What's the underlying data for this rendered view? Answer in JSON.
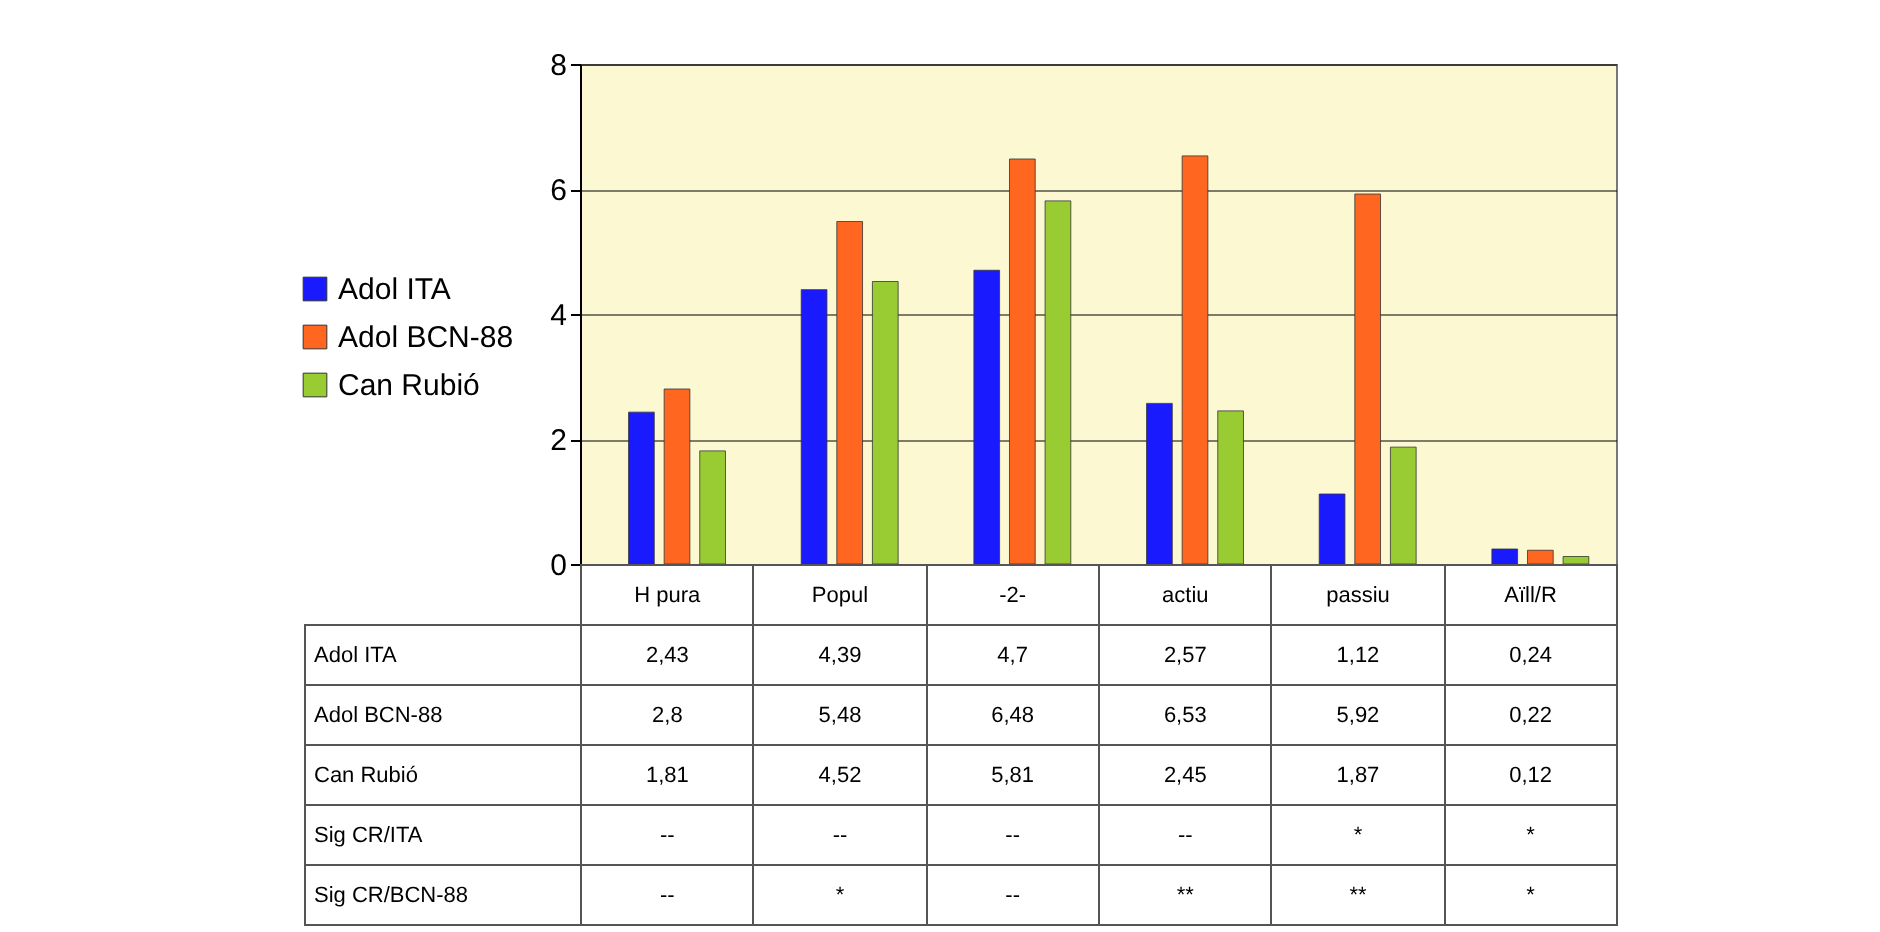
{
  "chart_data": {
    "type": "bar",
    "categories": [
      "H pura",
      "Popul",
      "-2-",
      "actiu",
      "passiu",
      "Aïll/R"
    ],
    "series": [
      {
        "name": "Adol ITA",
        "color": "#1a1aff",
        "values": [
          2.43,
          4.39,
          4.7,
          2.57,
          1.12,
          0.24
        ],
        "value_labels": [
          "2,43",
          "4,39",
          "4,7",
          "2,57",
          "1,12",
          "0,24"
        ]
      },
      {
        "name": "Adol BCN-88",
        "color": "#ff6620",
        "values": [
          2.8,
          5.48,
          6.48,
          6.53,
          5.92,
          0.22
        ],
        "value_labels": [
          "2,8",
          "5,48",
          "6,48",
          "6,53",
          "5,92",
          "0,22"
        ]
      },
      {
        "name": "Can Rubió",
        "color": "#99cc33",
        "values": [
          1.81,
          4.52,
          5.81,
          2.45,
          1.87,
          0.12
        ],
        "value_labels": [
          "1,81",
          "4,52",
          "5,81",
          "2,45",
          "1,87",
          "0,12"
        ]
      }
    ],
    "ylim": [
      0,
      8
    ],
    "yticks": [
      0,
      2,
      4,
      6,
      8
    ],
    "grid": "y",
    "legend": "left",
    "annotations": [
      "Sig CR/ITA",
      "--",
      "--",
      "--",
      "--",
      "*",
      "*",
      "Sig CR/BCN-88",
      "--",
      "*",
      "--",
      "**",
      "**",
      "*"
    ]
  }
}
